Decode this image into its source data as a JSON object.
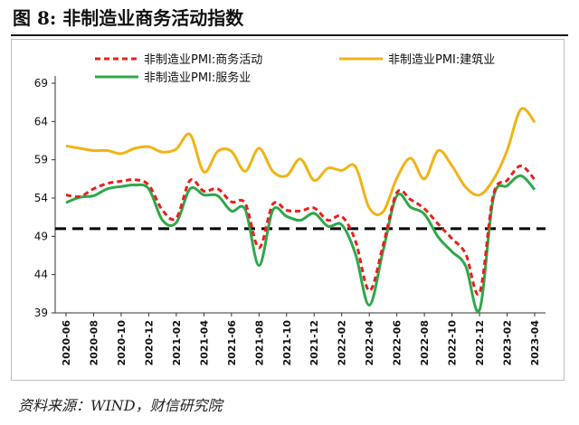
{
  "figure": {
    "title": "图 8:  非制造业商务活动指数",
    "source": "资料来源：WIND，财信研究院"
  },
  "chart_data": {
    "type": "line",
    "title": "",
    "xlabel": "",
    "ylabel": "",
    "ylim": [
      39,
      69
    ],
    "yticks": [
      "39",
      "44",
      "49",
      "54",
      "59",
      "64",
      "69"
    ],
    "xtick_labels": [
      "2020-06",
      "2020-08",
      "2020-10",
      "2020-12",
      "2021-02",
      "2021-04",
      "2021-06",
      "2021-08",
      "2021-10",
      "2021-12",
      "2022-02",
      "2022-04",
      "2022-06",
      "2022-08",
      "2022-10",
      "2022-12",
      "2023-02",
      "2023-04"
    ],
    "x": [
      "2020-06",
      "2020-07",
      "2020-08",
      "2020-09",
      "2020-10",
      "2020-11",
      "2020-12",
      "2021-01",
      "2021-02",
      "2021-03",
      "2021-04",
      "2021-05",
      "2021-06",
      "2021-07",
      "2021-08",
      "2021-09",
      "2021-10",
      "2021-11",
      "2021-12",
      "2022-01",
      "2022-02",
      "2022-03",
      "2022-04",
      "2022-05",
      "2022-06",
      "2022-07",
      "2022-08",
      "2022-09",
      "2022-10",
      "2022-11",
      "2022-12",
      "2023-01",
      "2023-02",
      "2023-03",
      "2023-04"
    ],
    "reference_line": 50,
    "legend_position": "top",
    "series": [
      {
        "name": "非制造业PMI:商务活动",
        "color": "#e8201c",
        "style": "dashed",
        "values": [
          54.4,
          54.2,
          55.2,
          55.9,
          56.2,
          56.4,
          55.7,
          52.4,
          51.4,
          56.3,
          54.9,
          55.2,
          53.5,
          53.3,
          47.5,
          53.2,
          52.4,
          52.3,
          52.7,
          51.1,
          51.6,
          48.4,
          41.9,
          47.8,
          54.7,
          53.8,
          52.6,
          50.6,
          48.7,
          46.7,
          41.6,
          54.4,
          56.3,
          58.2,
          56.4
        ]
      },
      {
        "name": "非制造业PMI:建筑业",
        "color": "#f1b416",
        "style": "solid",
        "values": [
          60.8,
          60.5,
          60.2,
          60.2,
          59.8,
          60.5,
          60.7,
          60.0,
          60.4,
          62.3,
          57.4,
          60.1,
          60.1,
          57.5,
          60.5,
          57.5,
          56.9,
          59.1,
          56.3,
          57.9,
          57.6,
          58.1,
          52.7,
          52.2,
          56.6,
          59.2,
          56.5,
          60.2,
          58.2,
          55.4,
          54.4,
          56.4,
          60.2,
          65.6,
          63.9
        ]
      },
      {
        "name": "非制造业PMI:服务业",
        "color": "#2ea84a",
        "style": "solid",
        "values": [
          53.4,
          54.1,
          54.3,
          55.2,
          55.5,
          55.7,
          55.2,
          51.1,
          50.8,
          55.2,
          54.4,
          54.3,
          52.3,
          52.5,
          45.2,
          52.4,
          51.6,
          51.1,
          52.0,
          50.3,
          50.5,
          46.7,
          40.0,
          47.1,
          54.3,
          52.8,
          51.9,
          48.9,
          47.0,
          45.1,
          39.4,
          54.0,
          55.6,
          56.9,
          55.1
        ]
      }
    ]
  }
}
